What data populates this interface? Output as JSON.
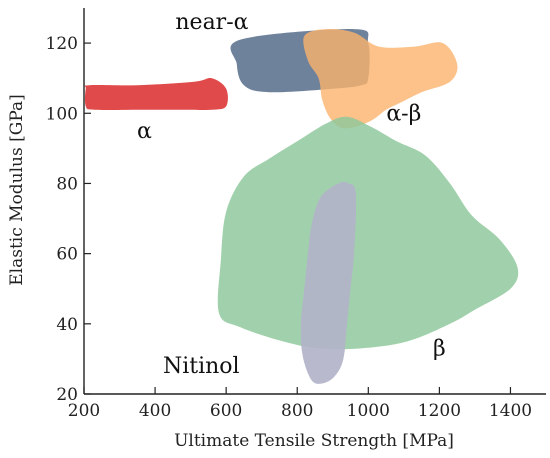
{
  "chart_data": {
    "type": "area",
    "xlabel": "Ultimate Tensile Strength [MPa]",
    "ylabel": "Elastic Modulus [GPa]",
    "xlim": [
      200,
      1500
    ],
    "ylim": [
      20,
      130
    ],
    "xticks": [
      200,
      400,
      600,
      800,
      1000,
      1200,
      1400
    ],
    "yticks": [
      20,
      40,
      60,
      80,
      100,
      120
    ],
    "grid": false,
    "regions": [
      {
        "name": "near-α",
        "color": "#4f6785",
        "opacity": 0.82,
        "points": [
          [
            640,
            121
          ],
          [
            960,
            124
          ],
          [
            1000,
            120
          ],
          [
            1000,
            110
          ],
          [
            980,
            108
          ],
          [
            900,
            107
          ],
          [
            720,
            106
          ],
          [
            650,
            108
          ],
          [
            630,
            114
          ]
        ]
      },
      {
        "name": "α-β",
        "color": "#fbb36d",
        "opacity": 0.8,
        "points": [
          [
            820,
            122
          ],
          [
            880,
            124
          ],
          [
            960,
            123
          ],
          [
            1030,
            119
          ],
          [
            1130,
            119
          ],
          [
            1210,
            120
          ],
          [
            1250,
            114
          ],
          [
            1230,
            109
          ],
          [
            1150,
            106
          ],
          [
            1090,
            103
          ],
          [
            1050,
            101
          ],
          [
            1010,
            98
          ],
          [
            960,
            96
          ],
          [
            920,
            96
          ],
          [
            890,
            99
          ],
          [
            870,
            104
          ],
          [
            860,
            110
          ],
          [
            830,
            115
          ]
        ]
      },
      {
        "name": "β",
        "color": "#8cc79a",
        "opacity": 0.82,
        "points": [
          [
            940,
            99
          ],
          [
            1010,
            96
          ],
          [
            1080,
            92
          ],
          [
            1160,
            88
          ],
          [
            1230,
            80
          ],
          [
            1290,
            71
          ],
          [
            1370,
            64
          ],
          [
            1420,
            56
          ],
          [
            1400,
            50
          ],
          [
            1300,
            44
          ],
          [
            1230,
            40
          ],
          [
            1110,
            35
          ],
          [
            980,
            33
          ],
          [
            860,
            33
          ],
          [
            760,
            35
          ],
          [
            640,
            39
          ],
          [
            580,
            43
          ],
          [
            585,
            58
          ],
          [
            600,
            72
          ],
          [
            650,
            82
          ],
          [
            720,
            87
          ],
          [
            800,
            92
          ],
          [
            880,
            97
          ]
        ]
      },
      {
        "name": "Nitinol",
        "color": "#b2b3c9",
        "opacity": 0.92,
        "points": [
          [
            915,
            80
          ],
          [
            945,
            80
          ],
          [
            965,
            77
          ],
          [
            960,
            60
          ],
          [
            950,
            50
          ],
          [
            940,
            40
          ],
          [
            930,
            30
          ],
          [
            905,
            25
          ],
          [
            870,
            23
          ],
          [
            840,
            24
          ],
          [
            815,
            31
          ],
          [
            810,
            40
          ],
          [
            820,
            50
          ],
          [
            830,
            60
          ],
          [
            840,
            68
          ],
          [
            865,
            76
          ]
        ]
      },
      {
        "name": "α",
        "color": "#e04a4a",
        "opacity": 1,
        "points": [
          [
            215,
            108
          ],
          [
            350,
            108
          ],
          [
            510,
            109
          ],
          [
            560,
            110
          ],
          [
            600,
            107
          ],
          [
            600,
            102
          ],
          [
            560,
            101
          ],
          [
            480,
            101
          ],
          [
            350,
            101
          ],
          [
            230,
            101
          ],
          [
            205,
            102
          ],
          [
            205,
            107
          ]
        ]
      }
    ],
    "labels": [
      {
        "text": "near-α",
        "x": 560,
        "y": 124
      },
      {
        "text": "α-β",
        "x": 1100,
        "y": 98
      },
      {
        "text": "α",
        "x": 370,
        "y": 93
      },
      {
        "text": "β",
        "x": 1200,
        "y": 31
      },
      {
        "text": "Nitinol",
        "x": 530,
        "y": 26
      }
    ]
  }
}
